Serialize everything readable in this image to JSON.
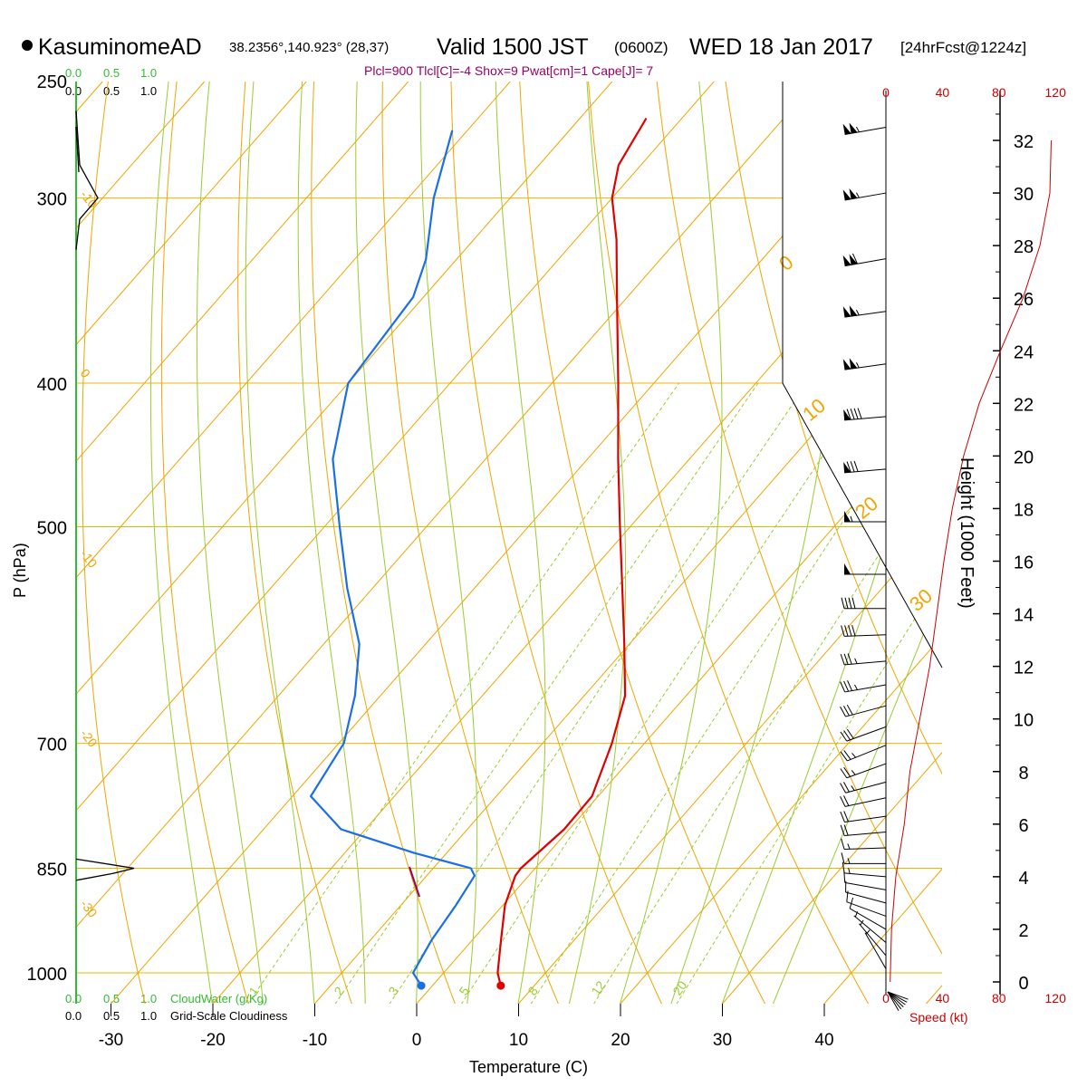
{
  "header": {
    "station_name": "KasuminomeAD",
    "station_coords": "38.2356°,140.923° (28,37)",
    "valid_prefix": "Valid 1500 JST",
    "valid_z": "(0600Z)",
    "valid_date": "WED 18 Jan 2017",
    "forecast": "[24hrFcst@1224z]",
    "indices": "Plcl=900 Tlcl[C]=-4 Shox=9 Pwat[cm]=1 Cape[J]= 7"
  },
  "labels": {
    "pressure_axis": "P (hPa)",
    "temperature_axis": "Temperature (C)",
    "height_axis": "Height (1000 Feet)",
    "speed_axis": "Speed (kt)",
    "cloud_water": "CloudWater (g/Kg)",
    "cloudiness": "Grid-Scale Cloudiness"
  },
  "colors": {
    "temperature": "#e00000",
    "dewpoint": "#1a6fe8",
    "parcel": "#990066",
    "isobar": "#e8b800",
    "isotherm": "#f0a500",
    "dry_adiabat": "#f0a500",
    "moist_adiabat": "#99cc33",
    "mixing_ratio": "#99cc33",
    "wind_speed": "#cc0000",
    "cloud_water": "#33bb33"
  },
  "chart_data": {
    "type": "skew-t",
    "pressure_ticks": [
      250,
      300,
      400,
      500,
      700,
      850,
      1000
    ],
    "temperature_ticks": [
      -30,
      -20,
      -10,
      0,
      10,
      20,
      30,
      40
    ],
    "height_ticks": [
      0,
      2,
      4,
      6,
      8,
      10,
      12,
      14,
      16,
      18,
      20,
      22,
      24,
      26,
      28,
      30,
      32
    ],
    "speed_ticks": [
      0,
      40,
      80,
      120
    ],
    "cloud_ticks": [
      "0.0",
      "0.5",
      "1.0"
    ],
    "isotherm_labels": [
      "-10",
      "0",
      "10",
      "20",
      "30",
      "0",
      "10",
      "20",
      "30"
    ],
    "mixing_ratio_labels": [
      "1",
      "2",
      "3",
      "5",
      "8",
      "12",
      "20"
    ],
    "surface_temperature": 6.7,
    "surface_dewpoint": -1.1,
    "temperature_profile": [
      {
        "p": 1020,
        "t": 6.7
      },
      {
        "p": 1000,
        "t": 5.3
      },
      {
        "p": 950,
        "t": 2.8
      },
      {
        "p": 900,
        "t": 0.2
      },
      {
        "p": 860,
        "t": -1.3
      },
      {
        "p": 850,
        "t": -1.4
      },
      {
        "p": 800,
        "t": -0.5
      },
      {
        "p": 760,
        "t": -0.6
      },
      {
        "p": 700,
        "t": -3.2
      },
      {
        "p": 650,
        "t": -6.0
      },
      {
        "p": 600,
        "t": -10.5
      },
      {
        "p": 550,
        "t": -15.5
      },
      {
        "p": 500,
        "t": -21.0
      },
      {
        "p": 450,
        "t": -27.0
      },
      {
        "p": 400,
        "t": -33.5
      },
      {
        "p": 350,
        "t": -41.0
      },
      {
        "p": 320,
        "t": -46.0
      },
      {
        "p": 300,
        "t": -50.0
      },
      {
        "p": 285,
        "t": -52.2
      },
      {
        "p": 265,
        "t": -53.5
      }
    ],
    "dewpoint_profile": [
      {
        "p": 1020,
        "t": -1.1
      },
      {
        "p": 1000,
        "t": -3.0
      },
      {
        "p": 950,
        "t": -4.0
      },
      {
        "p": 900,
        "t": -4.6
      },
      {
        "p": 860,
        "t": -5.3
      },
      {
        "p": 850,
        "t": -6.3
      },
      {
        "p": 830,
        "t": -13.2
      },
      {
        "p": 800,
        "t": -22.4
      },
      {
        "p": 760,
        "t": -28.2
      },
      {
        "p": 700,
        "t": -29.5
      },
      {
        "p": 650,
        "t": -32.5
      },
      {
        "p": 600,
        "t": -36.5
      },
      {
        "p": 550,
        "t": -42.5
      },
      {
        "p": 500,
        "t": -48.5
      },
      {
        "p": 450,
        "t": -55.0
      },
      {
        "p": 400,
        "t": -60.0
      },
      {
        "p": 350,
        "t": -61.0
      },
      {
        "p": 330,
        "t": -63.0
      },
      {
        "p": 300,
        "t": -67.5
      },
      {
        "p": 270,
        "t": -71.5
      }
    ],
    "wind_speed_profile": [
      {
        "h": 0,
        "spd": 3
      },
      {
        "h": 2,
        "spd": 4
      },
      {
        "h": 4,
        "spd": 7
      },
      {
        "h": 6,
        "spd": 13
      },
      {
        "h": 8,
        "spd": 17
      },
      {
        "h": 10,
        "spd": 24
      },
      {
        "h": 12,
        "spd": 31
      },
      {
        "h": 14,
        "spd": 36
      },
      {
        "h": 16,
        "spd": 41
      },
      {
        "h": 18,
        "spd": 47
      },
      {
        "h": 20,
        "spd": 55
      },
      {
        "h": 22,
        "spd": 66
      },
      {
        "h": 24,
        "spd": 81
      },
      {
        "h": 26,
        "spd": 97
      },
      {
        "h": 28,
        "spd": 109
      },
      {
        "h": 30,
        "spd": 116
      },
      {
        "h": 32,
        "spd": 117
      }
    ],
    "wind_barbs": [
      {
        "h": 32.5,
        "dir": 260,
        "spd": 105
      },
      {
        "h": 30,
        "dir": 260,
        "spd": 105
      },
      {
        "h": 27.5,
        "dir": 260,
        "spd": 110
      },
      {
        "h": 25.5,
        "dir": 262,
        "spd": 105
      },
      {
        "h": 23.5,
        "dir": 262,
        "spd": 105
      },
      {
        "h": 21.5,
        "dir": 265,
        "spd": 90
      },
      {
        "h": 19.5,
        "dir": 265,
        "spd": 80
      },
      {
        "h": 17.5,
        "dir": 270,
        "spd": 55
      },
      {
        "h": 15.5,
        "dir": 270,
        "spd": 50
      },
      {
        "h": 14.2,
        "dir": 270,
        "spd": 40
      },
      {
        "h": 13.2,
        "dir": 268,
        "spd": 40
      },
      {
        "h": 12.2,
        "dir": 265,
        "spd": 35
      },
      {
        "h": 11.3,
        "dir": 260,
        "spd": 35
      },
      {
        "h": 10.5,
        "dir": 255,
        "spd": 30
      },
      {
        "h": 9.7,
        "dir": 250,
        "spd": 30
      },
      {
        "h": 9,
        "dir": 248,
        "spd": 25
      },
      {
        "h": 8.3,
        "dir": 250,
        "spd": 25
      },
      {
        "h": 7.6,
        "dir": 255,
        "spd": 25
      },
      {
        "h": 7,
        "dir": 258,
        "spd": 20
      },
      {
        "h": 6.3,
        "dir": 262,
        "spd": 20
      },
      {
        "h": 5.7,
        "dir": 265,
        "spd": 20
      },
      {
        "h": 5.1,
        "dir": 268,
        "spd": 15
      },
      {
        "h": 4.5,
        "dir": 270,
        "spd": 15
      },
      {
        "h": 4,
        "dir": 275,
        "spd": 15
      },
      {
        "h": 3.5,
        "dir": 280,
        "spd": 10
      },
      {
        "h": 3,
        "dir": 285,
        "spd": 10
      },
      {
        "h": 2.5,
        "dir": 290,
        "spd": 10
      },
      {
        "h": 2,
        "dir": 300,
        "spd": 10
      },
      {
        "h": 1.5,
        "dir": 310,
        "spd": 5
      },
      {
        "h": 1,
        "dir": 320,
        "spd": 5
      },
      {
        "h": 0.5,
        "dir": 330,
        "spd": 5
      }
    ],
    "cloudiness_profile": [
      {
        "p": 262,
        "v": 0.0
      },
      {
        "p": 285,
        "v": 0.05
      },
      {
        "p": 300,
        "v": 0.3
      },
      {
        "p": 310,
        "v": 0.05
      },
      {
        "p": 325,
        "v": 0.0
      }
    ],
    "cloudiness_low": [
      {
        "p": 838,
        "v": 0.0
      },
      {
        "p": 850,
        "v": 0.8
      },
      {
        "p": 857,
        "v": 0.5
      },
      {
        "p": 866,
        "v": 0.0
      }
    ]
  }
}
